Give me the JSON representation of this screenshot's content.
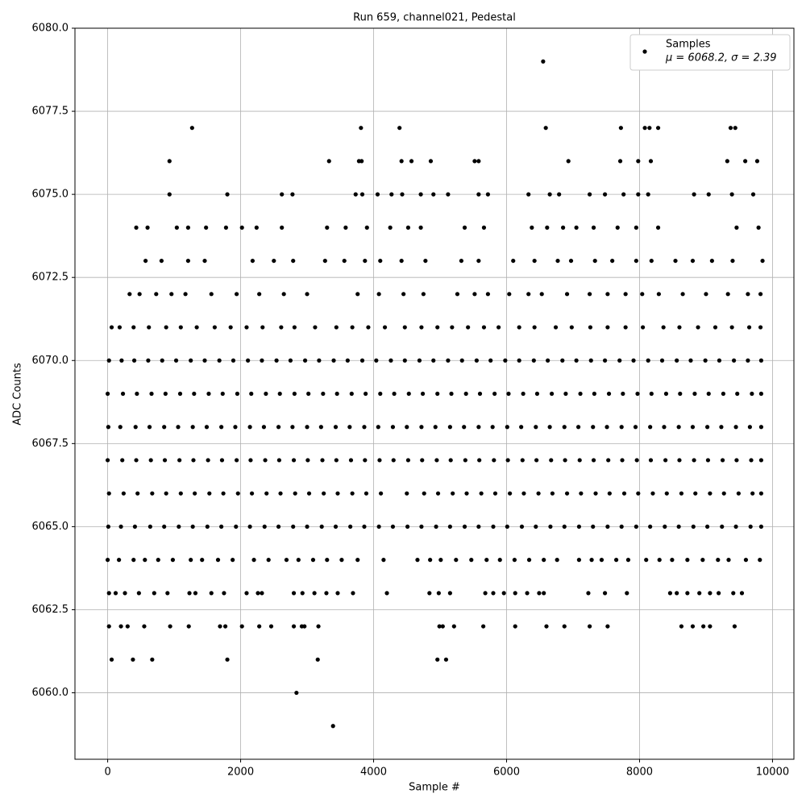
{
  "chart_data": {
    "type": "scatter",
    "title": "Run 659, channel021, Pedestal",
    "x_label": "Sample #",
    "y_label": "ADC Counts",
    "xlim": [
      -492,
      10322
    ],
    "ylim": [
      6058,
      6080
    ],
    "xticks": [
      0,
      2000,
      4000,
      6000,
      8000,
      10000
    ],
    "yticks": [
      {
        "value": 6060,
        "label": "6060.0"
      },
      {
        "value": 6062.5,
        "label": "6062.5"
      },
      {
        "value": 6065,
        "label": "6065.0"
      },
      {
        "value": 6067.5,
        "label": "6067.5"
      },
      {
        "value": 6070,
        "label": "6070.0"
      },
      {
        "value": 6072.5,
        "label": "6072.5"
      },
      {
        "value": 6075,
        "label": "6075.0"
      },
      {
        "value": 6077.5,
        "label": "6077.5"
      },
      {
        "value": 6080,
        "label": "6080.0"
      }
    ],
    "grid": true,
    "legend": "upper right",
    "legend_note": "μ = 6068.2, σ = 2.39",
    "series": [
      {
        "name": "Samples",
        "color": "#000000",
        "x": [
          6550,
          1270,
          3810,
          4390,
          6590,
          7720,
          8080,
          8150,
          8280,
          9370,
          9440,
          930,
          3330,
          3780,
          3820,
          4420,
          4570,
          4860,
          5520,
          5580,
          6930,
          7710,
          7980,
          8170,
          9320,
          9590,
          9770,
          2840,
          3390,
          60,
          380,
          670,
          1800,
          3160,
          4960,
          5090,
          930,
          1800,
          2620,
          2780,
          3730,
          3830,
          4060,
          4270,
          4430,
          4710,
          4900,
          5120,
          5580,
          5720,
          6330,
          6650,
          6790,
          7250,
          7480,
          7760,
          7980,
          8130,
          8820,
          9040,
          9390,
          9710,
          430,
          600,
          1040,
          1210,
          1480,
          1780,
          2020,
          2240,
          2620,
          3300,
          3580,
          3900,
          4250,
          4520,
          4710,
          5370,
          5660,
          6380,
          6610,
          6850,
          7050,
          7310,
          7670,
          7950,
          8280,
          9460,
          9790,
          570,
          810,
          1210,
          1460,
          2180,
          2500,
          2790,
          3270,
          3560,
          3870,
          4100,
          4420,
          4780,
          5320,
          5580,
          6100,
          6420,
          6770,
          6970,
          7330,
          7590,
          7950,
          8180,
          8540,
          8800,
          9090,
          9400,
          9850,
          330,
          480,
          730,
          960,
          1170,
          1560,
          1940,
          2280,
          2650,
          3000,
          3760,
          4080,
          4450,
          4750,
          5260,
          5520,
          5720,
          6040,
          6330,
          6530,
          6910,
          7250,
          7520,
          7790,
          8040,
          8290,
          8650,
          9000,
          9330,
          9630,
          9820,
          60,
          180,
          390,
          620,
          880,
          1100,
          1340,
          1610,
          1850,
          2090,
          2330,
          2610,
          2810,
          3120,
          3440,
          3680,
          3920,
          4170,
          4470,
          4720,
          4960,
          5180,
          5420,
          5660,
          5880,
          6190,
          6420,
          6740,
          6980,
          7260,
          7520,
          7790,
          8050,
          8360,
          8600,
          8880,
          9140,
          9390,
          9650,
          9820,
          20,
          210,
          400,
          610,
          820,
          1030,
          1250,
          1460,
          1680,
          1890,
          2110,
          2320,
          2540,
          2750,
          2970,
          3180,
          3400,
          3610,
          3830,
          4040,
          4260,
          4470,
          4690,
          4900,
          5120,
          5330,
          5550,
          5760,
          5980,
          6190,
          6410,
          6620,
          6840,
          7050,
          7270,
          7480,
          7700,
          7910,
          8130,
          8340,
          8560,
          8770,
          8990,
          9200,
          9420,
          9630,
          9830,
          0,
          230,
          440,
          660,
          870,
          1090,
          1300,
          1520,
          1730,
          1950,
          2160,
          2380,
          2590,
          2810,
          3020,
          3240,
          3450,
          3670,
          3880,
          4100,
          4310,
          4530,
          4740,
          4960,
          5170,
          5390,
          5600,
          5820,
          6030,
          6250,
          6460,
          6680,
          6890,
          7110,
          7320,
          7540,
          7750,
          7970,
          8180,
          8400,
          8610,
          8830,
          9040,
          9260,
          9470,
          9690,
          9830,
          10,
          190,
          420,
          630,
          850,
          1060,
          1280,
          1490,
          1710,
          1920,
          2140,
          2350,
          2570,
          2780,
          3000,
          3210,
          3430,
          3640,
          3860,
          4070,
          4290,
          4500,
          4720,
          4930,
          5150,
          5360,
          5580,
          5790,
          6010,
          6220,
          6440,
          6650,
          6870,
          7080,
          7300,
          7510,
          7730,
          7940,
          8160,
          8370,
          8590,
          8800,
          9020,
          9230,
          9450,
          9660,
          9830,
          0,
          220,
          430,
          650,
          860,
          1080,
          1290,
          1510,
          1720,
          1940,
          2150,
          2370,
          2580,
          2800,
          3010,
          3230,
          3440,
          3660,
          3870,
          4090,
          4300,
          4520,
          4730,
          4950,
          5160,
          5380,
          5590,
          5810,
          6020,
          6240,
          6450,
          6670,
          6880,
          7100,
          7310,
          7530,
          7740,
          7960,
          8170,
          8390,
          8600,
          8820,
          9030,
          9250,
          9460,
          9680,
          9830,
          20,
          240,
          450,
          670,
          880,
          1100,
          1310,
          1530,
          1740,
          1960,
          2170,
          2390,
          2600,
          2820,
          3030,
          3250,
          3460,
          3680,
          3890,
          4110,
          4500,
          4760,
          4970,
          5190,
          5400,
          5620,
          5830,
          6050,
          6260,
          6480,
          6690,
          6910,
          7120,
          7340,
          7550,
          7770,
          7980,
          8200,
          8410,
          8630,
          8840,
          9060,
          9270,
          9490,
          9700,
          9830,
          10,
          200,
          410,
          640,
          850,
          1070,
          1280,
          1500,
          1710,
          1930,
          2140,
          2360,
          2570,
          2790,
          3000,
          3220,
          3430,
          3650,
          3860,
          4080,
          4290,
          4510,
          4720,
          4940,
          5150,
          5370,
          5580,
          5800,
          6010,
          6230,
          6440,
          6660,
          6870,
          7090,
          7300,
          7520,
          7730,
          7950,
          8160,
          8380,
          8590,
          8810,
          9020,
          9240,
          9450,
          9670,
          9830,
          0,
          170,
          390,
          560,
          760,
          980,
          1250,
          1420,
          1660,
          1880,
          2200,
          2420,
          2690,
          2870,
          3090,
          3300,
          3520,
          3760,
          4150,
          4660,
          4850,
          5010,
          5240,
          5470,
          5700,
          5900,
          6120,
          6340,
          6560,
          6760,
          7090,
          7280,
          7430,
          7650,
          7830,
          8100,
          8300,
          8490,
          8720,
          8950,
          9180,
          9340,
          9600,
          9810,
          20,
          120,
          260,
          470,
          700,
          900,
          1230,
          1320,
          1560,
          1750,
          2090,
          2260,
          2320,
          2800,
          2930,
          3110,
          3290,
          3460,
          3690,
          4200,
          4840,
          4980,
          5150,
          5680,
          5800,
          5960,
          6130,
          6310,
          6490,
          6560,
          7230,
          7480,
          7810,
          8460,
          8560,
          8720,
          8900,
          9060,
          9190,
          9410,
          9540,
          20,
          200,
          300,
          550,
          940,
          1220,
          1690,
          1770,
          2020,
          2280,
          2460,
          2800,
          2920,
          2960,
          3170,
          4990,
          5040,
          5210,
          5650,
          6130,
          6600,
          6870,
          7250,
          7520,
          8630,
          8800,
          8960,
          9060,
          9430
        ],
        "y": [
          6079,
          6077,
          6077,
          6077,
          6077,
          6077,
          6077,
          6077,
          6077,
          6077,
          6077,
          6076,
          6076,
          6076,
          6076,
          6076,
          6076,
          6076,
          6076,
          6076,
          6076,
          6076,
          6076,
          6076,
          6076,
          6076,
          6076,
          6060,
          6059,
          6061,
          6061,
          6061,
          6061,
          6061,
          6061,
          6061,
          6075,
          6075,
          6075,
          6075,
          6075,
          6075,
          6075,
          6075,
          6075,
          6075,
          6075,
          6075,
          6075,
          6075,
          6075,
          6075,
          6075,
          6075,
          6075,
          6075,
          6075,
          6075,
          6075,
          6075,
          6075,
          6075,
          6074,
          6074,
          6074,
          6074,
          6074,
          6074,
          6074,
          6074,
          6074,
          6074,
          6074,
          6074,
          6074,
          6074,
          6074,
          6074,
          6074,
          6074,
          6074,
          6074,
          6074,
          6074,
          6074,
          6074,
          6074,
          6074,
          6074,
          6073,
          6073,
          6073,
          6073,
          6073,
          6073,
          6073,
          6073,
          6073,
          6073,
          6073,
          6073,
          6073,
          6073,
          6073,
          6073,
          6073,
          6073,
          6073,
          6073,
          6073,
          6073,
          6073,
          6073,
          6073,
          6073,
          6073,
          6073,
          6072,
          6072,
          6072,
          6072,
          6072,
          6072,
          6072,
          6072,
          6072,
          6072,
          6072,
          6072,
          6072,
          6072,
          6072,
          6072,
          6072,
          6072,
          6072,
          6072,
          6072,
          6072,
          6072,
          6072,
          6072,
          6072,
          6072,
          6072,
          6072,
          6072,
          6072,
          6071,
          6071,
          6071,
          6071,
          6071,
          6071,
          6071,
          6071,
          6071,
          6071,
          6071,
          6071,
          6071,
          6071,
          6071,
          6071,
          6071,
          6071,
          6071,
          6071,
          6071,
          6071,
          6071,
          6071,
          6071,
          6071,
          6071,
          6071,
          6071,
          6071,
          6071,
          6071,
          6071,
          6071,
          6071,
          6071,
          6071,
          6071,
          6071,
          6071,
          6070,
          6070,
          6070,
          6070,
          6070,
          6070,
          6070,
          6070,
          6070,
          6070,
          6070,
          6070,
          6070,
          6070,
          6070,
          6070,
          6070,
          6070,
          6070,
          6070,
          6070,
          6070,
          6070,
          6070,
          6070,
          6070,
          6070,
          6070,
          6070,
          6070,
          6070,
          6070,
          6070,
          6070,
          6070,
          6070,
          6070,
          6070,
          6070,
          6070,
          6070,
          6070,
          6070,
          6070,
          6070,
          6070,
          6070,
          6069,
          6069,
          6069,
          6069,
          6069,
          6069,
          6069,
          6069,
          6069,
          6069,
          6069,
          6069,
          6069,
          6069,
          6069,
          6069,
          6069,
          6069,
          6069,
          6069,
          6069,
          6069,
          6069,
          6069,
          6069,
          6069,
          6069,
          6069,
          6069,
          6069,
          6069,
          6069,
          6069,
          6069,
          6069,
          6069,
          6069,
          6069,
          6069,
          6069,
          6069,
          6069,
          6069,
          6069,
          6069,
          6069,
          6069,
          6068,
          6068,
          6068,
          6068,
          6068,
          6068,
          6068,
          6068,
          6068,
          6068,
          6068,
          6068,
          6068,
          6068,
          6068,
          6068,
          6068,
          6068,
          6068,
          6068,
          6068,
          6068,
          6068,
          6068,
          6068,
          6068,
          6068,
          6068,
          6068,
          6068,
          6068,
          6068,
          6068,
          6068,
          6068,
          6068,
          6068,
          6068,
          6068,
          6068,
          6068,
          6068,
          6068,
          6068,
          6068,
          6068,
          6068,
          6067,
          6067,
          6067,
          6067,
          6067,
          6067,
          6067,
          6067,
          6067,
          6067,
          6067,
          6067,
          6067,
          6067,
          6067,
          6067,
          6067,
          6067,
          6067,
          6067,
          6067,
          6067,
          6067,
          6067,
          6067,
          6067,
          6067,
          6067,
          6067,
          6067,
          6067,
          6067,
          6067,
          6067,
          6067,
          6067,
          6067,
          6067,
          6067,
          6067,
          6067,
          6067,
          6067,
          6067,
          6067,
          6067,
          6067,
          6066,
          6066,
          6066,
          6066,
          6066,
          6066,
          6066,
          6066,
          6066,
          6066,
          6066,
          6066,
          6066,
          6066,
          6066,
          6066,
          6066,
          6066,
          6066,
          6066,
          6066,
          6066,
          6066,
          6066,
          6066,
          6066,
          6066,
          6066,
          6066,
          6066,
          6066,
          6066,
          6066,
          6066,
          6066,
          6066,
          6066,
          6066,
          6066,
          6066,
          6066,
          6066,
          6066,
          6066,
          6066,
          6066,
          6065,
          6065,
          6065,
          6065,
          6065,
          6065,
          6065,
          6065,
          6065,
          6065,
          6065,
          6065,
          6065,
          6065,
          6065,
          6065,
          6065,
          6065,
          6065,
          6065,
          6065,
          6065,
          6065,
          6065,
          6065,
          6065,
          6065,
          6065,
          6065,
          6065,
          6065,
          6065,
          6065,
          6065,
          6065,
          6065,
          6065,
          6065,
          6065,
          6065,
          6065,
          6065,
          6065,
          6065,
          6065,
          6065,
          6065,
          6064,
          6064,
          6064,
          6064,
          6064,
          6064,
          6064,
          6064,
          6064,
          6064,
          6064,
          6064,
          6064,
          6064,
          6064,
          6064,
          6064,
          6064,
          6064,
          6064,
          6064,
          6064,
          6064,
          6064,
          6064,
          6064,
          6064,
          6064,
          6064,
          6064,
          6064,
          6064,
          6064,
          6064,
          6064,
          6064,
          6064,
          6064,
          6064,
          6064,
          6064,
          6064,
          6064,
          6064,
          6063,
          6063,
          6063,
          6063,
          6063,
          6063,
          6063,
          6063,
          6063,
          6063,
          6063,
          6063,
          6063,
          6063,
          6063,
          6063,
          6063,
          6063,
          6063,
          6063,
          6063,
          6063,
          6063,
          6063,
          6063,
          6063,
          6063,
          6063,
          6063,
          6063,
          6063,
          6063,
          6063,
          6063,
          6063,
          6063,
          6063,
          6063,
          6063,
          6063,
          6063,
          6062,
          6062,
          6062,
          6062,
          6062,
          6062,
          6062,
          6062,
          6062,
          6062,
          6062,
          6062,
          6062,
          6062,
          6062,
          6062,
          6062,
          6062,
          6062,
          6062,
          6062,
          6062,
          6062,
          6062,
          6062,
          6062,
          6062,
          6062,
          6062
        ]
      }
    ]
  }
}
